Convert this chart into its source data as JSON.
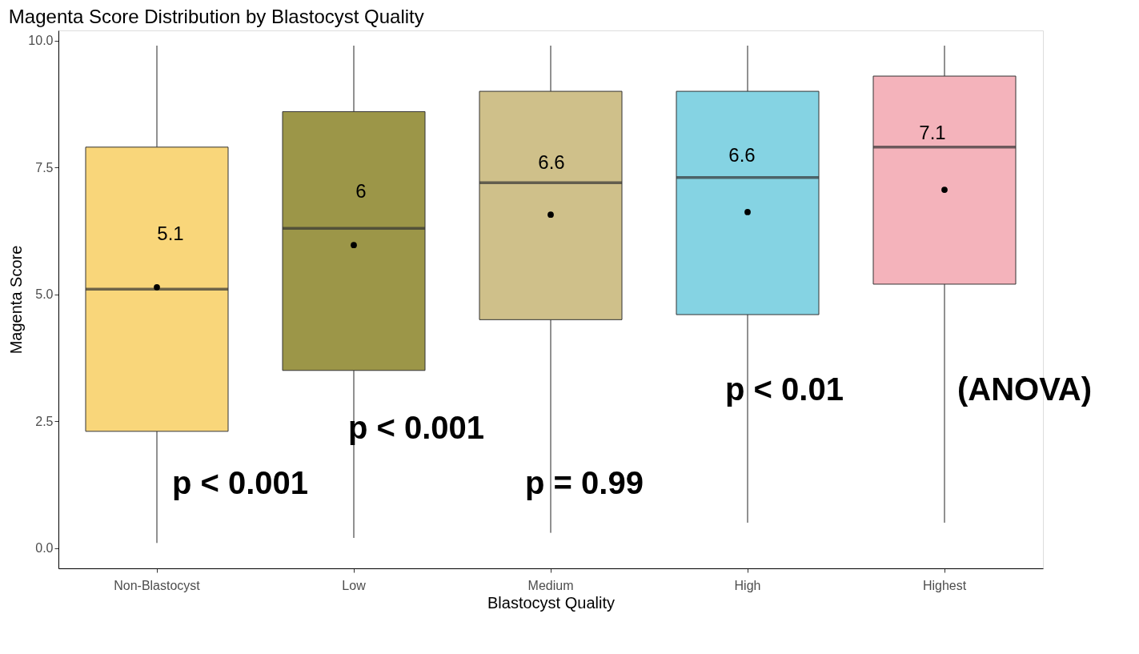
{
  "chart_data": {
    "type": "box",
    "title": "Magenta Score Distribution by Blastocyst Quality",
    "xlabel": "Blastocyst Quality",
    "ylabel": "Magenta Score",
    "categories": [
      "Non-Blastocyst",
      "Low",
      "Medium",
      "High",
      "Highest"
    ],
    "colors": [
      "#f9d67a",
      "#9c9648",
      "#cfc08a",
      "#85d3e3",
      "#f4b3bb"
    ],
    "boxes": [
      {
        "low": 0.1,
        "q1": 2.3,
        "median": 5.1,
        "q3": 7.9,
        "high": 9.9,
        "mean": 5.14
      },
      {
        "low": 0.2,
        "q1": 3.5,
        "median": 6.3,
        "q3": 8.6,
        "high": 9.9,
        "mean": 5.97
      },
      {
        "low": 0.3,
        "q1": 4.5,
        "median": 7.2,
        "q3": 9.0,
        "high": 9.9,
        "mean": 6.57
      },
      {
        "low": 0.5,
        "q1": 4.6,
        "median": 7.3,
        "q3": 9.0,
        "high": 9.9,
        "mean": 6.62
      },
      {
        "low": 0.5,
        "q1": 5.2,
        "median": 7.9,
        "q3": 9.3,
        "high": 9.9,
        "mean": 7.06
      }
    ],
    "ylim": [
      -0.4,
      10.2
    ],
    "yticks": [
      {
        "value": 0,
        "label": "0.0"
      },
      {
        "value": 2.5,
        "label": "2.5"
      },
      {
        "value": 5,
        "label": "5.0"
      },
      {
        "value": 7.5,
        "label": "7.5"
      },
      {
        "value": 10,
        "label": "10.0"
      }
    ],
    "marker": "circle",
    "grid": false,
    "annotations": [
      "5.1",
      "6",
      "6.6",
      "6.6",
      "7.1",
      "p < 0.001",
      "p < 0.001",
      "p = 0.99",
      "p < 0.01",
      "(ANOVA)"
    ]
  }
}
